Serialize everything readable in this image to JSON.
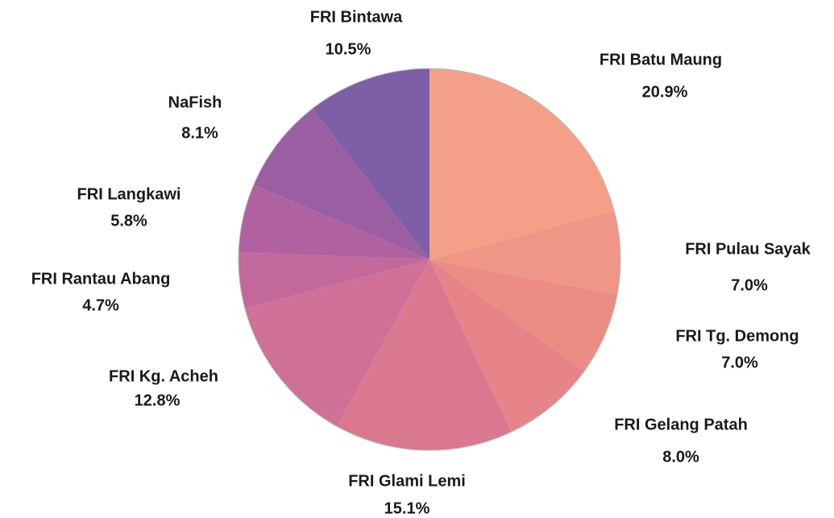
{
  "chart_data": {
    "type": "pie",
    "categories": [
      "FRI Batu Maung",
      "FRI Pulau Sayak",
      "FRI Tg. Demong",
      "FRI Gelang Patah",
      "FRI Glami Lemi",
      "FRI Kg. Acheh",
      "FRI Rantau Abang",
      "FRI Langkawi",
      "NaFish",
      "FRI Bintawa"
    ],
    "values": [
      20.9,
      7.0,
      7.0,
      8.0,
      15.1,
      12.8,
      4.7,
      5.8,
      8.1,
      10.5
    ],
    "value_labels": [
      "20.9%",
      "7.0%",
      "7.0%",
      "8.0%",
      "15.1%",
      "12.8%",
      "4.7%",
      "5.8%",
      "8.1%",
      "10.5%"
    ],
    "colors": [
      "#f4a088",
      "#f09686",
      "#ec8d85",
      "#e68489",
      "#da788f",
      "#cf7096",
      "#c2689b",
      "#b1619f",
      "#9a5ea3",
      "#7e5ea6"
    ]
  }
}
